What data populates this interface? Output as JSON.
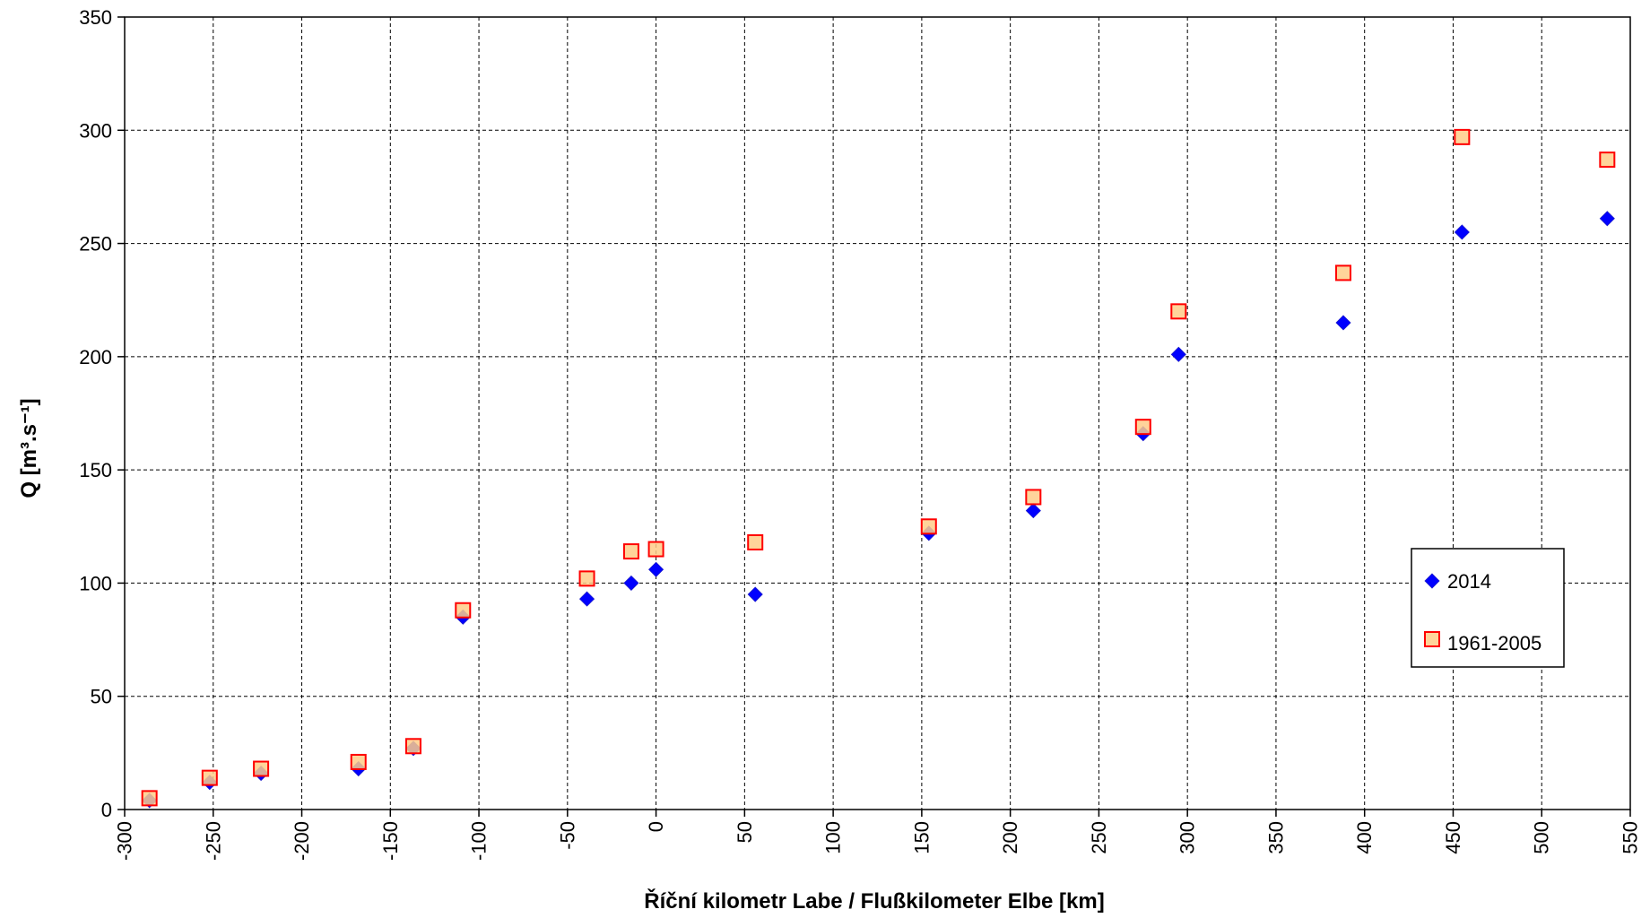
{
  "chart_data": {
    "type": "scatter",
    "title": "",
    "xlabel": "Říční kilometr Labe / Flußkilometer Elbe [km]",
    "ylabel": "Q [m³.s⁻¹]",
    "xlim": [
      -300,
      550
    ],
    "ylim": [
      0,
      350
    ],
    "xticks": [
      -300,
      -250,
      -200,
      -150,
      -100,
      -50,
      0,
      50,
      100,
      150,
      200,
      250,
      300,
      350,
      400,
      450,
      500,
      550
    ],
    "yticks": [
      0,
      50,
      100,
      150,
      200,
      250,
      300,
      350
    ],
    "grid": true,
    "legend_position": "right",
    "series": [
      {
        "name": "2014",
        "marker": "diamond",
        "color": "#0000ff",
        "points": [
          [
            -286,
            4
          ],
          [
            -252,
            12
          ],
          [
            -223,
            16
          ],
          [
            -168,
            18
          ],
          [
            -137,
            27
          ],
          [
            -109,
            85
          ],
          [
            -39,
            93
          ],
          [
            -14,
            100
          ],
          [
            0,
            106
          ],
          [
            56,
            95
          ],
          [
            154,
            122
          ],
          [
            213,
            132
          ],
          [
            275,
            166
          ],
          [
            295,
            201
          ],
          [
            388,
            215
          ],
          [
            455,
            255
          ],
          [
            537,
            261
          ]
        ]
      },
      {
        "name": "1961-2005",
        "marker": "square",
        "color": "#ff0000",
        "fill": "#ffcc88",
        "points": [
          [
            -286,
            5
          ],
          [
            -252,
            14
          ],
          [
            -223,
            18
          ],
          [
            -168,
            21
          ],
          [
            -137,
            28
          ],
          [
            -109,
            88
          ],
          [
            -39,
            102
          ],
          [
            -14,
            114
          ],
          [
            0,
            115
          ],
          [
            56,
            118
          ],
          [
            154,
            125
          ],
          [
            213,
            138
          ],
          [
            275,
            169
          ],
          [
            295,
            220
          ],
          [
            388,
            237
          ],
          [
            455,
            297
          ],
          [
            537,
            287
          ]
        ]
      }
    ]
  }
}
